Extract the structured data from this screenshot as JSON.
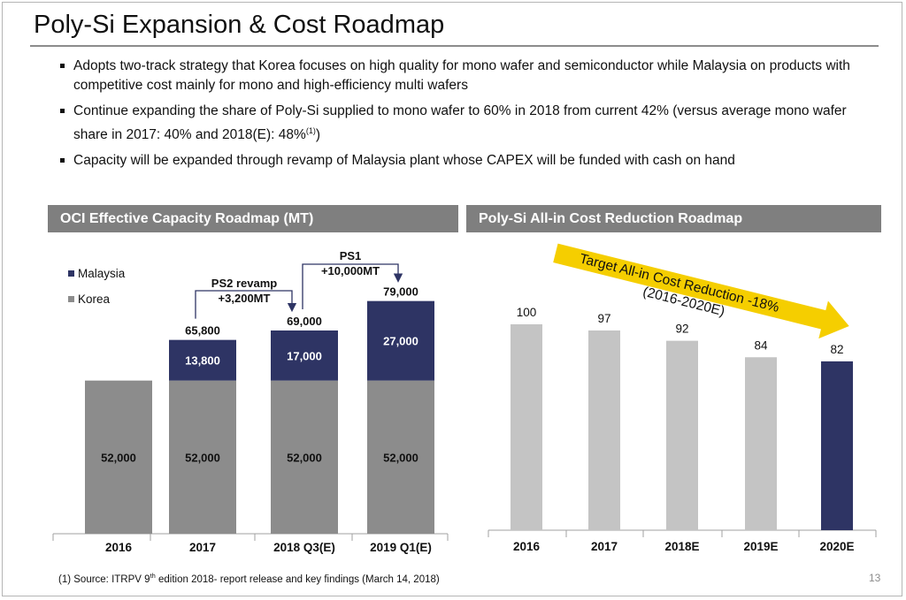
{
  "title": "Poly-Si Expansion & Cost Roadmap",
  "bullets": [
    {
      "text": "Adopts two-track strategy that Korea focuses on high quality for mono wafer and semiconductor while Malaysia on products with competitive cost mainly for mono and high-efficiency multi wafers"
    },
    {
      "text": "Continue expanding the share of Poly-Si supplied to mono wafer to 60% in 2018 from current 42% (versus average mono wafer share in 2017: 40% and 2018(E): 48%",
      "sup": "(1)",
      "tail": ")"
    },
    {
      "text": "Capacity will be expanded through revamp of Malaysia plant whose CAPEX will be funded with cash on hand"
    }
  ],
  "colors": {
    "korea": "#8c8c8c",
    "malaysia": "#2e3464",
    "light_bar": "#c4c4c4",
    "navy": "#2e3464",
    "header": "#7f7f7f",
    "arrow": "#f5ce00"
  },
  "chart_data": [
    {
      "type": "bar",
      "stacked": true,
      "title": "OCI Effective Capacity Roadmap (MT)",
      "categories": [
        "2016",
        "2017",
        "2018 Q3(E)",
        "2019 Q1(E)"
      ],
      "series": [
        {
          "name": "Korea",
          "values": [
            52000,
            52000,
            52000,
            52000
          ],
          "labels": [
            "52,000",
            "52,000",
            "52,000",
            "52,000"
          ]
        },
        {
          "name": "Malaysia",
          "values": [
            0,
            13800,
            17000,
            27000
          ],
          "labels": [
            "",
            "13,800",
            "17,000",
            "27,000"
          ]
        }
      ],
      "totals": [
        "",
        "65,800",
        "69,000",
        "79,000"
      ],
      "legend": [
        "Malaysia",
        "Korea"
      ],
      "annotations": [
        {
          "line1": "PS2 revamp",
          "line2": "+3,200MT",
          "from": "2017",
          "to": "2018 Q3(E)"
        },
        {
          "line1": "PS1",
          "line2": "+10,000MT",
          "from": "2018 Q3(E)",
          "to": "2019 Q1(E)"
        }
      ],
      "ylim": [
        0,
        90000
      ]
    },
    {
      "type": "bar",
      "title": "Poly-Si All-in Cost Reduction Roadmap",
      "categories": [
        "2016",
        "2017",
        "2018E",
        "2019E",
        "2020E"
      ],
      "values": [
        100,
        97,
        92,
        84,
        82
      ],
      "highlight_index": 4,
      "arrow_label_line1": "Target All-in Cost Reduction -18%",
      "arrow_label_line2": "(2016-2020E)",
      "ylim": [
        0,
        110
      ]
    }
  ],
  "footnote": {
    "prefix": "(1) Source: ITRPV 9",
    "sup": "th",
    "suffix": " edition 2018- report release and key findings (March 14, 2018)"
  },
  "page_number": "13"
}
